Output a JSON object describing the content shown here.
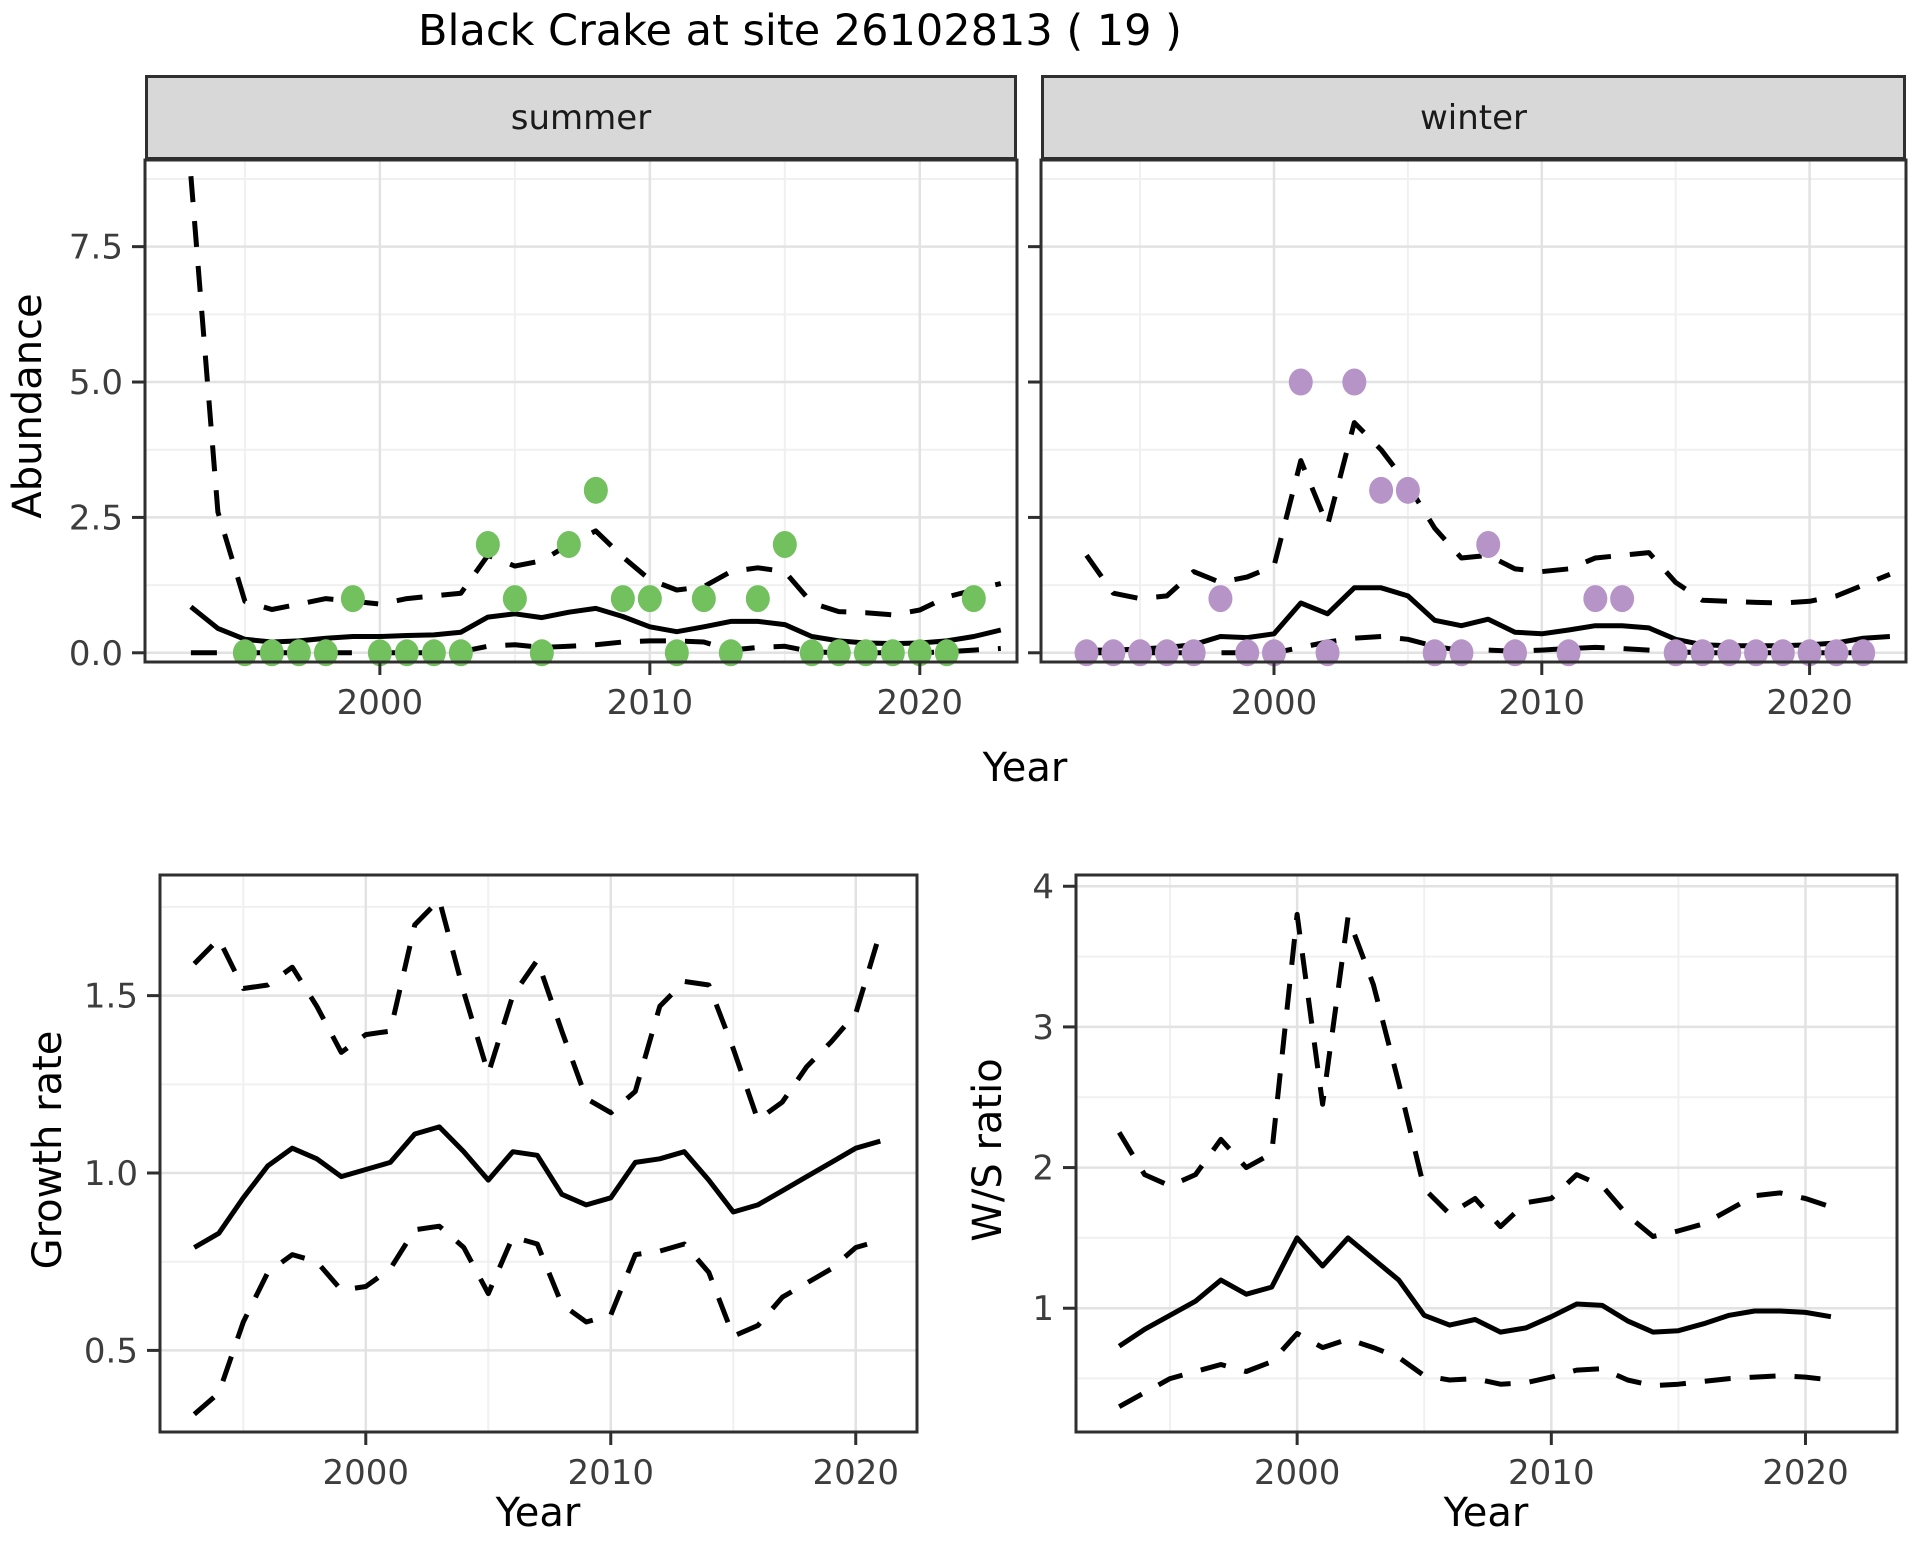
{
  "title": "Black Crake at site 26102813 ( 19 )",
  "axes": {
    "abundance_label": "Abundance",
    "year_label": "Year",
    "growth_label": "Growth rate",
    "ws_label": "W/S ratio"
  },
  "facets": [
    {
      "label": "summer"
    },
    {
      "label": "winter"
    }
  ],
  "colors": {
    "summer_point": "#73c05f",
    "winter_point": "#b794c7",
    "line": "#000000",
    "strip_bg": "#d8d8d8",
    "grid_major": "#e2e2e2",
    "grid_minor": "#f0f0f0",
    "panel_border": "#2f2f2f",
    "tick_label": "#3d3d3d"
  },
  "chart_data": [
    {
      "id": "abundance_summer",
      "type": "line",
      "facet": "summer",
      "xlabel": "Year",
      "ylabel": "Abundance",
      "xlim": [
        1991.3,
        2023.6
      ],
      "ylim": [
        -0.17,
        9.1
      ],
      "xticks": [
        2000,
        2010,
        2020
      ],
      "xtick_labels": [
        "2000",
        "2010",
        "2020"
      ],
      "xminor": [
        1995,
        2005,
        2015
      ],
      "yticks": [
        0,
        2.5,
        5,
        7.5
      ],
      "ytick_labels": [
        "0.0",
        "2.5",
        "5.0",
        "7.5"
      ],
      "yminor": [
        1.25,
        3.75,
        6.25,
        8.75
      ],
      "show_y_labels": true,
      "x": [
        1993,
        1994,
        1995,
        1996,
        1997,
        1998,
        1999,
        2000,
        2001,
        2002,
        2003,
        2004,
        2005,
        2006,
        2007,
        2008,
        2009,
        2010,
        2011,
        2012,
        2013,
        2014,
        2015,
        2016,
        2017,
        2018,
        2019,
        2020,
        2021,
        2022,
        2023
      ],
      "series": [
        {
          "name": "upper_ci",
          "style": "dashed",
          "values": [
            8.8,
            2.6,
            0.95,
            0.8,
            0.9,
            1.0,
            0.95,
            0.9,
            1.0,
            1.05,
            1.1,
            1.8,
            1.6,
            1.7,
            2.0,
            2.25,
            1.77,
            1.35,
            1.16,
            1.22,
            1.5,
            1.57,
            1.5,
            0.92,
            0.76,
            0.74,
            0.7,
            0.79,
            1.03,
            1.16,
            1.28
          ]
        },
        {
          "name": "mean",
          "style": "solid",
          "values": [
            0.85,
            0.45,
            0.25,
            0.2,
            0.22,
            0.27,
            0.3,
            0.3,
            0.32,
            0.33,
            0.38,
            0.66,
            0.72,
            0.65,
            0.75,
            0.82,
            0.67,
            0.48,
            0.39,
            0.48,
            0.58,
            0.58,
            0.52,
            0.3,
            0.22,
            0.18,
            0.17,
            0.18,
            0.22,
            0.3,
            0.42
          ]
        },
        {
          "name": "lower_ci",
          "style": "dashed",
          "values": [
            0,
            0,
            0,
            0,
            0,
            0,
            0,
            0,
            0,
            0,
            0.02,
            0.12,
            0.15,
            0.1,
            0.12,
            0.15,
            0.2,
            0.22,
            0.22,
            0.2,
            0.05,
            0.1,
            0.12,
            0.02,
            0,
            0,
            0,
            0,
            0.02,
            0.05,
            0.08
          ]
        }
      ],
      "points": {
        "color_key": "summer_point",
        "x": [
          1995,
          1996,
          1997,
          1998,
          1999,
          2000,
          2001,
          2002,
          2003,
          2004,
          2005,
          2006,
          2007,
          2008,
          2009,
          2010,
          2011,
          2012,
          2013,
          2014,
          2015,
          2016,
          2017,
          2018,
          2019,
          2020,
          2021,
          2022
        ],
        "y": [
          0,
          0,
          0,
          0,
          1,
          0,
          0,
          0,
          0,
          2,
          1,
          0,
          2,
          3,
          1,
          1,
          0,
          1,
          0,
          1,
          2,
          0,
          0,
          0,
          0,
          0,
          0,
          1
        ]
      }
    },
    {
      "id": "abundance_winter",
      "type": "line",
      "facet": "winter",
      "xlabel": "Year",
      "ylabel": "Abundance",
      "xlim": [
        1991.3,
        2023.6
      ],
      "ylim": [
        -0.17,
        9.1
      ],
      "xticks": [
        2000,
        2010,
        2020
      ],
      "xtick_labels": [
        "2000",
        "2010",
        "2020"
      ],
      "xminor": [
        1995,
        2005,
        2015
      ],
      "yticks": [
        0,
        2.5,
        5,
        7.5
      ],
      "ytick_labels": [
        "0.0",
        "2.5",
        "5.0",
        "7.5"
      ],
      "yminor": [
        1.25,
        3.75,
        6.25,
        8.75
      ],
      "show_y_labels": false,
      "x": [
        1993,
        1994,
        1995,
        1996,
        1997,
        1998,
        1999,
        2000,
        2001,
        2002,
        2003,
        2004,
        2005,
        2006,
        2007,
        2008,
        2009,
        2010,
        2011,
        2012,
        2013,
        2014,
        2015,
        2016,
        2017,
        2018,
        2019,
        2020,
        2021,
        2022,
        2023
      ],
      "series": [
        {
          "name": "upper_ci",
          "style": "dashed",
          "values": [
            1.8,
            1.1,
            1.0,
            1.05,
            1.5,
            1.3,
            1.4,
            1.6,
            3.55,
            2.35,
            4.25,
            3.75,
            3.1,
            2.3,
            1.75,
            1.8,
            1.55,
            1.5,
            1.55,
            1.75,
            1.8,
            1.85,
            1.3,
            0.97,
            0.95,
            0.93,
            0.92,
            0.95,
            1.05,
            1.25,
            1.45
          ]
        },
        {
          "name": "mean",
          "style": "solid",
          "values": [
            0.05,
            0.05,
            0.07,
            0.1,
            0.15,
            0.3,
            0.28,
            0.35,
            0.92,
            0.72,
            1.2,
            1.2,
            1.05,
            0.6,
            0.5,
            0.62,
            0.38,
            0.35,
            0.42,
            0.5,
            0.5,
            0.46,
            0.25,
            0.15,
            0.13,
            0.13,
            0.13,
            0.15,
            0.18,
            0.27,
            0.3
          ]
        },
        {
          "name": "lower_ci",
          "style": "dashed",
          "values": [
            0,
            0,
            0,
            0,
            0,
            0,
            0,
            0,
            0.1,
            0.2,
            0.27,
            0.3,
            0.25,
            0.12,
            0.04,
            0.05,
            0.03,
            0.05,
            0.08,
            0.1,
            0.08,
            0.05,
            0.02,
            0,
            0,
            0,
            0,
            0,
            0,
            0,
            0.02
          ]
        }
      ],
      "points": {
        "color_key": "winter_point",
        "x": [
          1993,
          1994,
          1995,
          1996,
          1997,
          1998,
          1999,
          2000,
          2001,
          2002,
          2003,
          2004,
          2005,
          2006,
          2007,
          2008,
          2009,
          2011,
          2012,
          2013,
          2015,
          2016,
          2017,
          2018,
          2019,
          2020,
          2021,
          2022
        ],
        "y": [
          0,
          0,
          0,
          0,
          0,
          1,
          0,
          0,
          5,
          0,
          5,
          3,
          3,
          0,
          0,
          2,
          0,
          0,
          1,
          1,
          0,
          0,
          0,
          0,
          0,
          0,
          0,
          0
        ]
      }
    },
    {
      "id": "growth_rate",
      "type": "line",
      "facet": null,
      "xlabel": "Year",
      "ylabel": "Growth rate",
      "xlim": [
        1991.6,
        2022.5
      ],
      "ylim": [
        0.27,
        1.84
      ],
      "xticks": [
        2000,
        2010,
        2020
      ],
      "xtick_labels": [
        "2000",
        "2010",
        "2020"
      ],
      "xminor": [
        1995,
        2005,
        2015
      ],
      "yticks": [
        0.5,
        1.0,
        1.5
      ],
      "ytick_labels": [
        "0.5",
        "1.0",
        "1.5"
      ],
      "yminor": [
        0.75,
        1.25,
        1.75
      ],
      "show_y_labels": true,
      "x": [
        1993,
        1994,
        1995,
        1996,
        1997,
        1998,
        1999,
        2000,
        2001,
        2002,
        2003,
        2004,
        2005,
        2006,
        2007,
        2008,
        2009,
        2010,
        2011,
        2012,
        2013,
        2014,
        2015,
        2016,
        2017,
        2018,
        2019,
        2020,
        2021
      ],
      "series": [
        {
          "name": "upper_ci",
          "style": "dashed",
          "values": [
            1.59,
            1.66,
            1.52,
            1.53,
            1.58,
            1.47,
            1.34,
            1.39,
            1.4,
            1.7,
            1.77,
            1.51,
            1.28,
            1.5,
            1.6,
            1.4,
            1.21,
            1.17,
            1.23,
            1.47,
            1.54,
            1.53,
            1.35,
            1.15,
            1.2,
            1.3,
            1.37,
            1.45,
            1.68
          ]
        },
        {
          "name": "mean",
          "style": "solid",
          "values": [
            0.79,
            0.83,
            0.93,
            1.02,
            1.07,
            1.04,
            0.99,
            1.01,
            1.03,
            1.11,
            1.13,
            1.06,
            0.98,
            1.06,
            1.05,
            0.94,
            0.91,
            0.93,
            1.03,
            1.04,
            1.06,
            0.98,
            0.89,
            0.91,
            0.95,
            0.99,
            1.03,
            1.07,
            1.09
          ]
        },
        {
          "name": "lower_ci",
          "style": "dashed",
          "values": [
            0.32,
            0.38,
            0.58,
            0.72,
            0.77,
            0.75,
            0.67,
            0.68,
            0.73,
            0.84,
            0.85,
            0.79,
            0.66,
            0.82,
            0.8,
            0.63,
            0.58,
            0.6,
            0.77,
            0.78,
            0.8,
            0.72,
            0.54,
            0.57,
            0.65,
            0.69,
            0.73,
            0.79,
            0.81
          ]
        }
      ],
      "points": null
    },
    {
      "id": "ws_ratio",
      "type": "line",
      "facet": null,
      "xlabel": "Year",
      "ylabel": "W/S ratio",
      "xlim": [
        1991.3,
        2023.6
      ],
      "ylim": [
        0.12,
        4.08
      ],
      "xticks": [
        2000,
        2010,
        2020
      ],
      "xtick_labels": [
        "2000",
        "2010",
        "2020"
      ],
      "xminor": [
        1995,
        2005,
        2015
      ],
      "yticks": [
        1,
        2,
        3,
        4
      ],
      "ytick_labels": [
        "1",
        "2",
        "3",
        "4"
      ],
      "yminor": [
        0.5,
        1.5,
        2.5,
        3.5
      ],
      "show_y_labels": true,
      "x": [
        1993,
        1994,
        1995,
        1996,
        1997,
        1998,
        1999,
        2000,
        2001,
        2002,
        2003,
        2004,
        2005,
        2006,
        2007,
        2008,
        2009,
        2010,
        2011,
        2012,
        2013,
        2014,
        2015,
        2016,
        2017,
        2018,
        2019,
        2020,
        2021
      ],
      "series": [
        {
          "name": "upper_ci",
          "style": "dashed",
          "values": [
            2.25,
            1.95,
            1.87,
            1.95,
            2.2,
            2.0,
            2.1,
            3.8,
            2.45,
            3.78,
            3.3,
            2.6,
            1.85,
            1.67,
            1.78,
            1.58,
            1.75,
            1.78,
            1.95,
            1.87,
            1.66,
            1.51,
            1.55,
            1.6,
            1.7,
            1.8,
            1.82,
            1.78,
            1.72
          ]
        },
        {
          "name": "mean",
          "style": "solid",
          "values": [
            0.73,
            0.85,
            0.95,
            1.05,
            1.2,
            1.1,
            1.15,
            1.5,
            1.3,
            1.5,
            1.35,
            1.2,
            0.95,
            0.88,
            0.92,
            0.83,
            0.86,
            0.94,
            1.03,
            1.02,
            0.91,
            0.83,
            0.84,
            0.89,
            0.95,
            0.98,
            0.98,
            0.97,
            0.94
          ]
        },
        {
          "name": "lower_ci",
          "style": "dashed",
          "values": [
            0.3,
            0.4,
            0.5,
            0.55,
            0.6,
            0.55,
            0.62,
            0.82,
            0.72,
            0.78,
            0.72,
            0.65,
            0.52,
            0.49,
            0.5,
            0.46,
            0.47,
            0.51,
            0.56,
            0.57,
            0.49,
            0.45,
            0.46,
            0.48,
            0.5,
            0.51,
            0.52,
            0.51,
            0.49
          ]
        }
      ],
      "points": null
    }
  ]
}
